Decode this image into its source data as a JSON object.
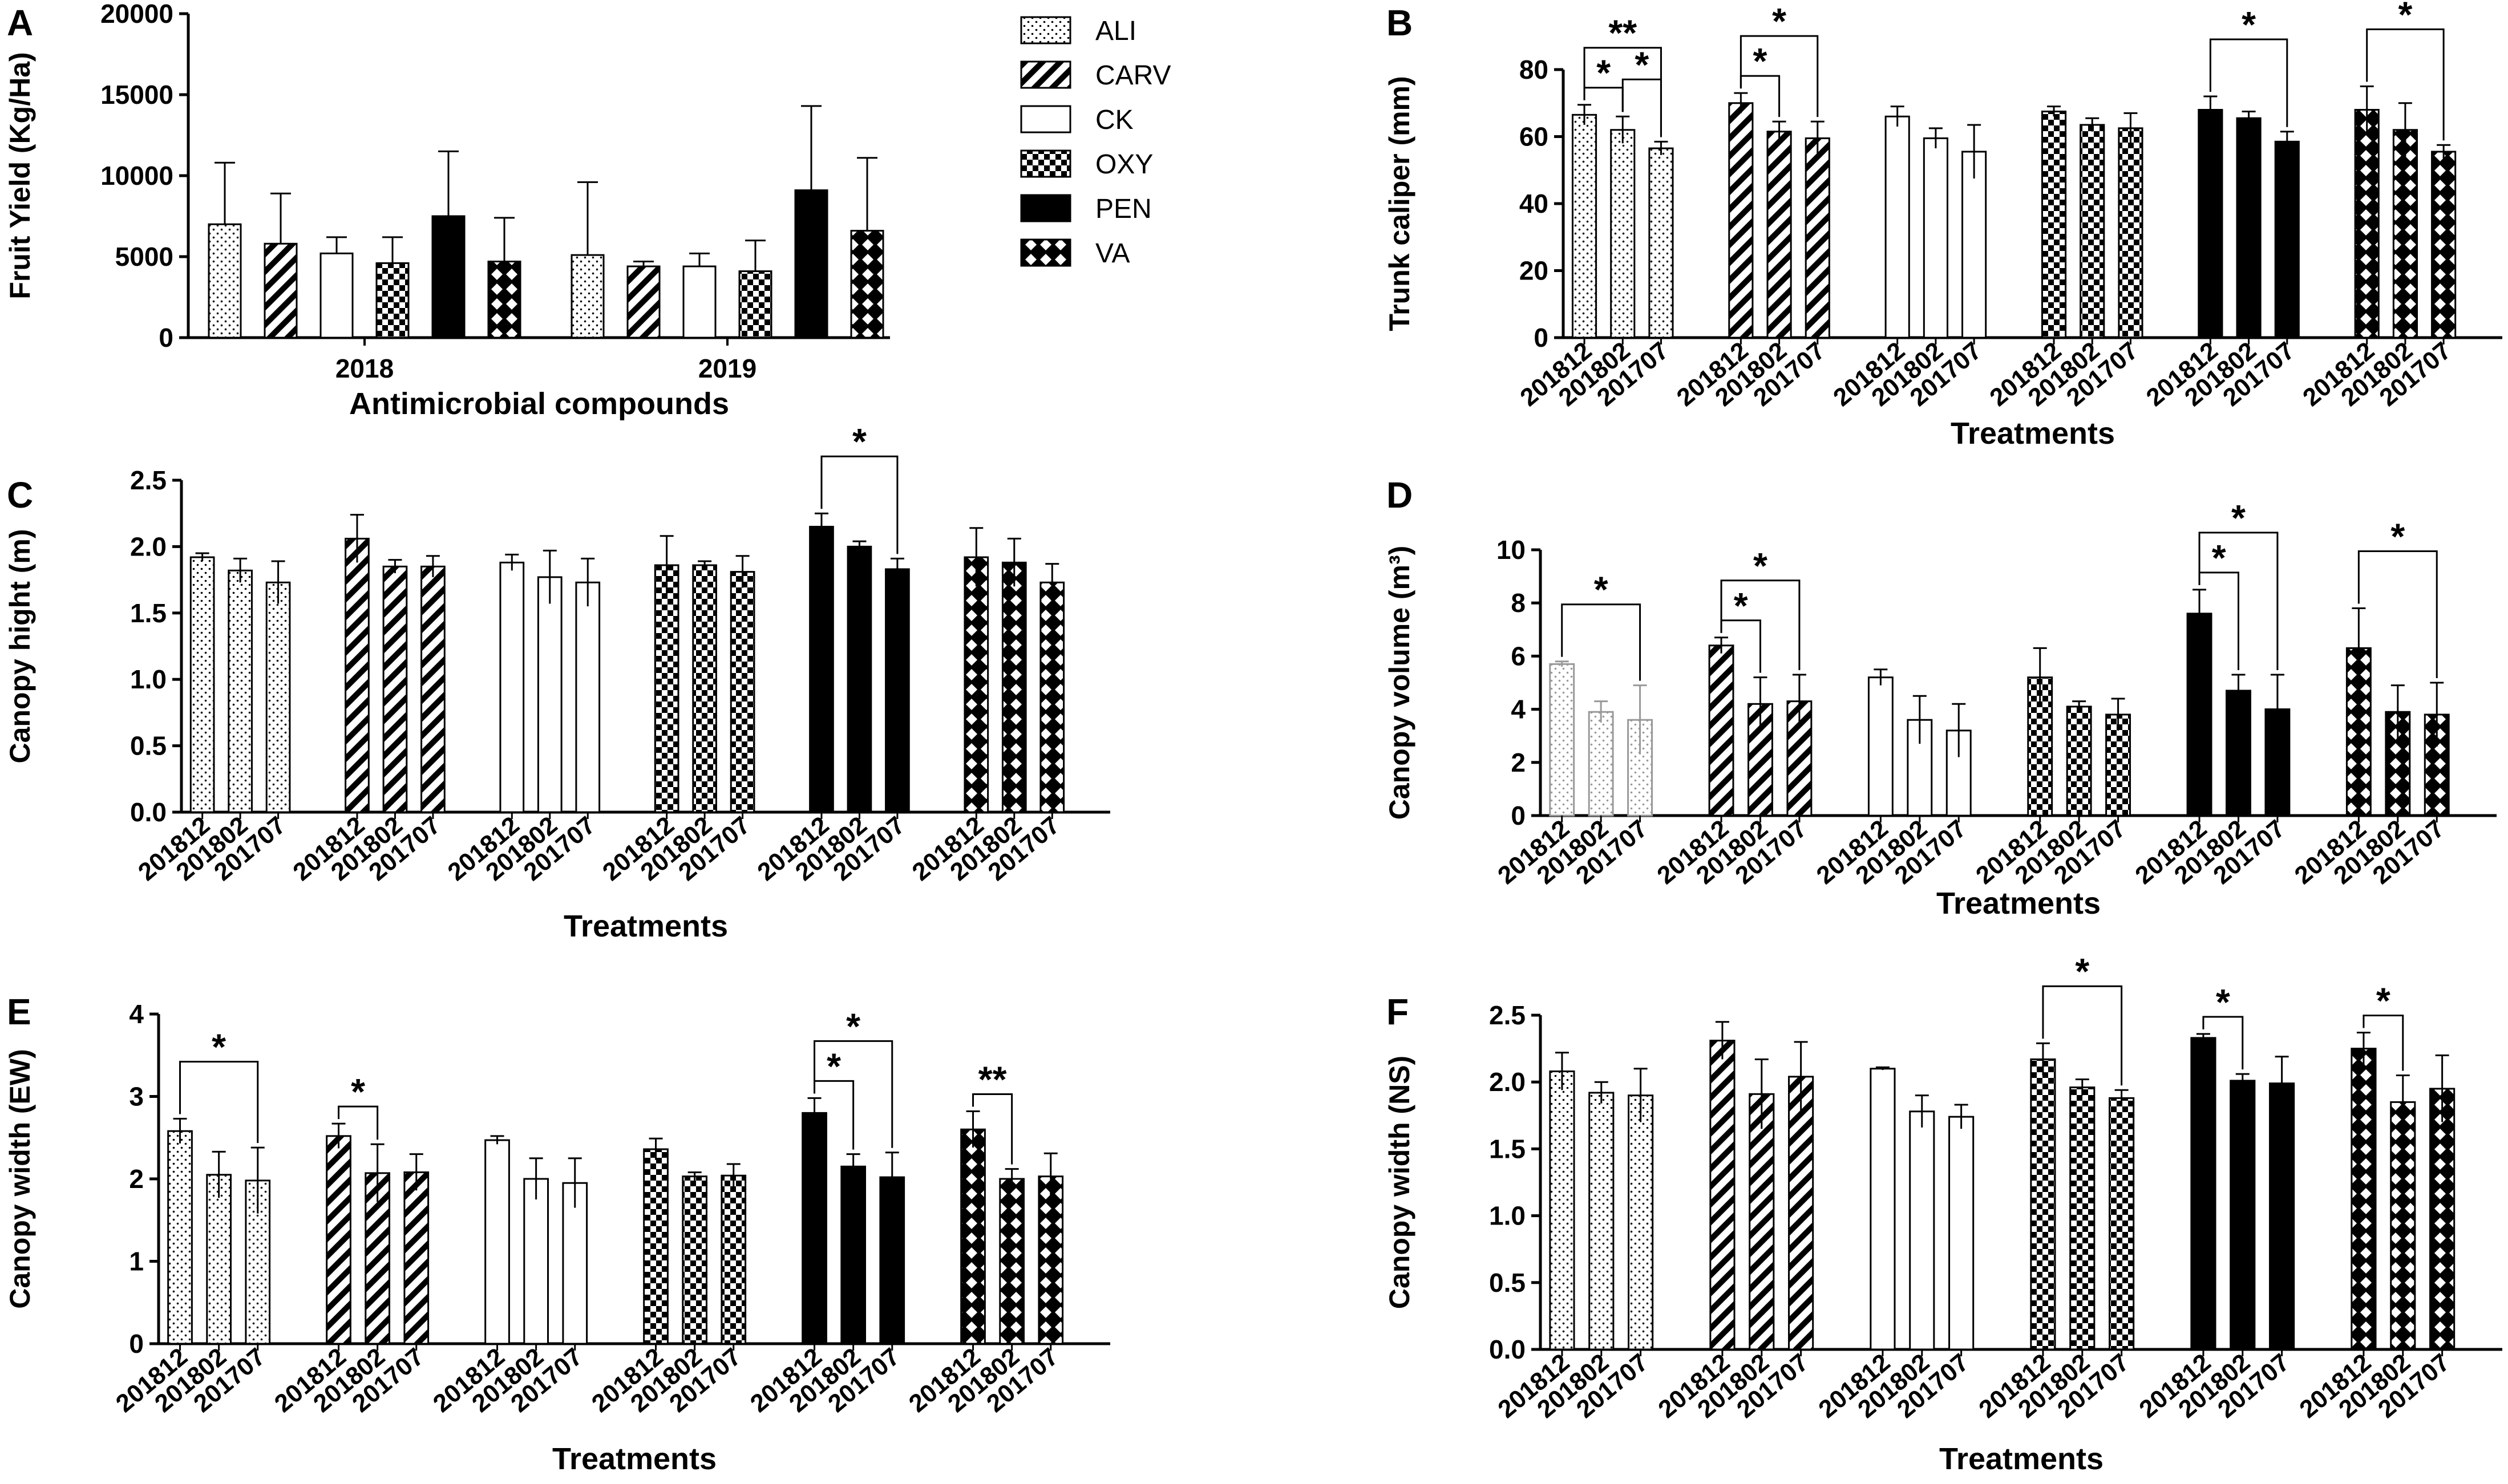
{
  "chart_data": [
    {
      "panel": "A",
      "type": "bar",
      "xlabel": "Antimicrobial compounds",
      "ylabel": "Fruit Yield (Kg/Ha)",
      "ylim": [
        0,
        20000
      ],
      "yticks": [
        0,
        5000,
        10000,
        15000,
        20000
      ],
      "groups": [
        "2018",
        "2019"
      ],
      "legend": [
        "ALI",
        "CARV",
        "CK",
        "OXY",
        "PEN",
        "VA"
      ],
      "series": [
        {
          "name": "ALI",
          "values": [
            7000,
            5100
          ],
          "errors": [
            3800,
            4500
          ]
        },
        {
          "name": "CARV",
          "values": [
            5800,
            4400
          ],
          "errors": [
            3100,
            300
          ]
        },
        {
          "name": "CK",
          "values": [
            5200,
            4400
          ],
          "errors": [
            1000,
            800
          ]
        },
        {
          "name": "OXY",
          "values": [
            4600,
            4100
          ],
          "errors": [
            1600,
            1900
          ]
        },
        {
          "name": "PEN",
          "values": [
            7500,
            9100
          ],
          "errors": [
            4000,
            5200
          ]
        },
        {
          "name": "VA",
          "values": [
            4700,
            6600
          ],
          "errors": [
            2700,
            4500
          ]
        }
      ]
    },
    {
      "panel": "B",
      "type": "bar",
      "xlabel": "Treatments",
      "ylabel": "Trunk caliper (mm)",
      "ylim": [
        0,
        80
      ],
      "yticks": [
        0,
        20,
        40,
        60,
        80
      ],
      "dates": [
        "201812",
        "201802",
        "201707"
      ],
      "groups": [
        {
          "name": "ALI",
          "values": [
            66.5,
            62,
            56.5
          ],
          "errors": [
            3,
            4,
            2
          ]
        },
        {
          "name": "CARV",
          "values": [
            70,
            61.5,
            59.5
          ],
          "errors": [
            3,
            3,
            5
          ]
        },
        {
          "name": "CK",
          "values": [
            66,
            59.5,
            55.5
          ],
          "errors": [
            3,
            3,
            8
          ]
        },
        {
          "name": "OXY",
          "values": [
            67.5,
            63.5,
            62.5
          ],
          "errors": [
            1.5,
            2,
            4.5
          ]
        },
        {
          "name": "PEN",
          "values": [
            68,
            65.5,
            58.5
          ],
          "errors": [
            4,
            2,
            3
          ]
        },
        {
          "name": "VA",
          "values": [
            68,
            62,
            55.5
          ],
          "errors": [
            7,
            8,
            2
          ]
        }
      ],
      "significance": [
        {
          "group": 0,
          "from": 0,
          "to": 1,
          "label": "*"
        },
        {
          "group": 0,
          "from": 1,
          "to": 2,
          "label": "*"
        },
        {
          "group": 0,
          "from": 0,
          "to": 2,
          "label": "**"
        },
        {
          "group": 1,
          "from": 0,
          "to": 1,
          "label": "*"
        },
        {
          "group": 1,
          "from": 0,
          "to": 2,
          "label": "*"
        },
        {
          "group": 4,
          "from": 0,
          "to": 2,
          "label": "*"
        },
        {
          "group": 5,
          "from": 0,
          "to": 2,
          "label": "*"
        }
      ]
    },
    {
      "panel": "C",
      "type": "bar",
      "xlabel": "Treatments",
      "ylabel": "Canopy hight (m)",
      "ylim": [
        0,
        2.5
      ],
      "yticks": [
        "0.0",
        "0.5",
        "1.0",
        "1.5",
        "2.0",
        "2.5"
      ],
      "dates": [
        "201812",
        "201802",
        "201707"
      ],
      "groups": [
        {
          "name": "ALI",
          "values": [
            1.92,
            1.82,
            1.73
          ],
          "errors": [
            0.03,
            0.09,
            0.16
          ]
        },
        {
          "name": "CARV",
          "values": [
            2.06,
            1.85,
            1.85
          ],
          "errors": [
            0.18,
            0.05,
            0.08
          ]
        },
        {
          "name": "CK",
          "values": [
            1.88,
            1.77,
            1.73
          ],
          "errors": [
            0.06,
            0.2,
            0.18
          ]
        },
        {
          "name": "OXY",
          "values": [
            1.86,
            1.86,
            1.81
          ],
          "errors": [
            0.22,
            0.03,
            0.12
          ]
        },
        {
          "name": "PEN",
          "values": [
            2.15,
            2.0,
            1.83
          ],
          "errors": [
            0.1,
            0.04,
            0.08
          ]
        },
        {
          "name": "VA",
          "values": [
            1.92,
            1.88,
            1.73
          ],
          "errors": [
            0.22,
            0.18,
            0.14
          ]
        }
      ],
      "significance": [
        {
          "group": 4,
          "from": 0,
          "to": 2,
          "label": "*"
        }
      ]
    },
    {
      "panel": "D",
      "type": "bar",
      "xlabel": "Treatments",
      "ylabel": "Canopy volume (m³)",
      "ylim": [
        0,
        10
      ],
      "yticks": [
        0,
        2,
        4,
        6,
        8,
        10
      ],
      "dates": [
        "201812",
        "201802",
        "201707"
      ],
      "groups": [
        {
          "name": "ALI",
          "values": [
            5.7,
            3.9,
            3.6
          ],
          "errors": [
            0.1,
            0.4,
            1.3
          ]
        },
        {
          "name": "CARV",
          "values": [
            6.4,
            4.2,
            4.3
          ],
          "errors": [
            0.3,
            1.0,
            1.0
          ]
        },
        {
          "name": "CK",
          "values": [
            5.2,
            3.6,
            3.2
          ],
          "errors": [
            0.3,
            0.9,
            1.0
          ]
        },
        {
          "name": "OXY",
          "values": [
            5.2,
            4.1,
            3.8
          ],
          "errors": [
            1.1,
            0.2,
            0.6
          ]
        },
        {
          "name": "PEN",
          "values": [
            7.6,
            4.7,
            4.0
          ],
          "errors": [
            0.9,
            0.6,
            1.3
          ]
        },
        {
          "name": "VA",
          "values": [
            6.3,
            3.9,
            3.8
          ],
          "errors": [
            1.5,
            1.0,
            1.2
          ]
        }
      ],
      "significance": [
        {
          "group": 0,
          "from": 0,
          "to": 2,
          "label": "*"
        },
        {
          "group": 1,
          "from": 0,
          "to": 1,
          "label": "*"
        },
        {
          "group": 1,
          "from": 0,
          "to": 2,
          "label": "*"
        },
        {
          "group": 4,
          "from": 0,
          "to": 1,
          "label": "*"
        },
        {
          "group": 4,
          "from": 0,
          "to": 2,
          "label": "*"
        },
        {
          "group": 5,
          "from": 0,
          "to": 2,
          "label": "*"
        }
      ]
    },
    {
      "panel": "E",
      "type": "bar",
      "xlabel": "Treatments",
      "ylabel": "Canopy width (EW)",
      "ylim": [
        0,
        4
      ],
      "yticks": [
        0,
        1,
        2,
        3,
        4
      ],
      "dates": [
        "201812",
        "201802",
        "201707"
      ],
      "groups": [
        {
          "name": "ALI",
          "values": [
            2.58,
            2.05,
            1.98
          ],
          "errors": [
            0.15,
            0.28,
            0.4
          ]
        },
        {
          "name": "CARV",
          "values": [
            2.52,
            2.07,
            2.08
          ],
          "errors": [
            0.15,
            0.35,
            0.22
          ]
        },
        {
          "name": "CK",
          "values": [
            2.47,
            2.0,
            1.95
          ],
          "errors": [
            0.05,
            0.25,
            0.3
          ]
        },
        {
          "name": "OXY",
          "values": [
            2.36,
            2.03,
            2.04
          ],
          "errors": [
            0.13,
            0.05,
            0.14
          ]
        },
        {
          "name": "PEN",
          "values": [
            2.8,
            2.15,
            2.02
          ],
          "errors": [
            0.18,
            0.15,
            0.3
          ]
        },
        {
          "name": "VA",
          "values": [
            2.6,
            2.0,
            2.03
          ],
          "errors": [
            0.22,
            0.12,
            0.28
          ]
        }
      ],
      "significance": [
        {
          "group": 0,
          "from": 0,
          "to": 2,
          "label": "*"
        },
        {
          "group": 1,
          "from": 0,
          "to": 1,
          "label": "*"
        },
        {
          "group": 4,
          "from": 0,
          "to": 1,
          "label": "*"
        },
        {
          "group": 4,
          "from": 0,
          "to": 2,
          "label": "*"
        },
        {
          "group": 5,
          "from": 0,
          "to": 1,
          "label": "**"
        }
      ]
    },
    {
      "panel": "F",
      "type": "bar",
      "xlabel": "Treatments",
      "ylabel": "Canopy width (NS)",
      "ylim": [
        0,
        2.5
      ],
      "yticks": [
        "0.0",
        "0.5",
        "1.0",
        "1.5",
        "2.0",
        "2.5"
      ],
      "dates": [
        "201812",
        "201802",
        "201707"
      ],
      "groups": [
        {
          "name": "ALI",
          "values": [
            2.08,
            1.92,
            1.9
          ],
          "errors": [
            0.14,
            0.08,
            0.2
          ]
        },
        {
          "name": "CARV",
          "values": [
            2.31,
            1.91,
            2.04
          ],
          "errors": [
            0.14,
            0.26,
            0.26
          ]
        },
        {
          "name": "CK",
          "values": [
            2.1,
            1.78,
            1.74
          ],
          "errors": [
            0.01,
            0.12,
            0.09
          ]
        },
        {
          "name": "OXY",
          "values": [
            2.17,
            1.96,
            1.88
          ],
          "errors": [
            0.12,
            0.06,
            0.06
          ]
        },
        {
          "name": "PEN",
          "values": [
            2.33,
            2.01,
            1.99
          ],
          "errors": [
            0.03,
            0.05,
            0.2
          ]
        },
        {
          "name": "VA",
          "values": [
            2.25,
            1.85,
            1.95
          ],
          "errors": [
            0.12,
            0.2,
            0.25
          ]
        }
      ],
      "significance": [
        {
          "group": 3,
          "from": 0,
          "to": 2,
          "label": "*"
        },
        {
          "group": 4,
          "from": 0,
          "to": 1,
          "label": "*"
        },
        {
          "group": 5,
          "from": 0,
          "to": 1,
          "label": "*"
        }
      ]
    }
  ]
}
